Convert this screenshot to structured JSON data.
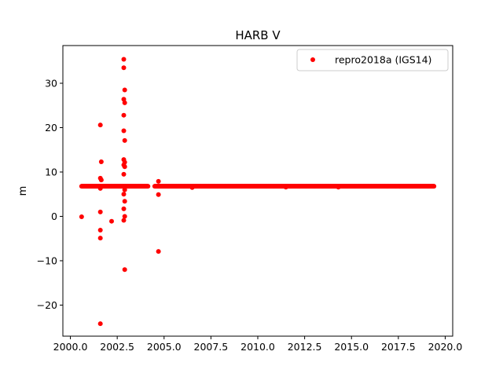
{
  "chart_data": {
    "type": "scatter",
    "title": "HARB V",
    "xlabel": "",
    "ylabel": "m",
    "xlim": [
      1999.6,
      2020.4
    ],
    "ylim": [
      -27,
      38.5
    ],
    "xticks": [
      2000.0,
      2002.5,
      2005.0,
      2007.5,
      2010.0,
      2012.5,
      2015.0,
      2017.5,
      2020.0
    ],
    "xtick_labels": [
      "2000.0",
      "2002.5",
      "2005.0",
      "2007.5",
      "2010.0",
      "2012.5",
      "2015.0",
      "2017.5",
      "2020.0"
    ],
    "yticks": [
      -20,
      -10,
      0,
      10,
      20,
      30
    ],
    "ytick_labels": [
      "−20",
      "−10",
      "0",
      "10",
      "20",
      "30"
    ],
    "grid": false,
    "legend_position": "top-right",
    "series": [
      {
        "name": "repro2018a (IGS14)",
        "color": "#ff0000",
        "marker": "circle",
        "baseline": {
          "y": 6.8,
          "segments": [
            [
              2000.6,
              2004.15
            ],
            [
              2004.5,
              2019.4
            ]
          ]
        },
        "points": [
          {
            "x": 2000.6,
            "y": -0.1
          },
          {
            "x": 2001.6,
            "y": 20.6
          },
          {
            "x": 2001.65,
            "y": 12.3
          },
          {
            "x": 2001.6,
            "y": 8.6
          },
          {
            "x": 2001.65,
            "y": 8.2
          },
          {
            "x": 2001.6,
            "y": 6.3
          },
          {
            "x": 2001.6,
            "y": 1.0
          },
          {
            "x": 2001.6,
            "y": -3.1
          },
          {
            "x": 2001.6,
            "y": -4.9
          },
          {
            "x": 2001.6,
            "y": -24.2
          },
          {
            "x": 2002.2,
            "y": -1.1
          },
          {
            "x": 2002.85,
            "y": 35.4
          },
          {
            "x": 2002.85,
            "y": 33.5
          },
          {
            "x": 2002.9,
            "y": 28.5
          },
          {
            "x": 2002.85,
            "y": 26.4
          },
          {
            "x": 2002.9,
            "y": 25.6
          },
          {
            "x": 2002.85,
            "y": 22.8
          },
          {
            "x": 2002.85,
            "y": 19.3
          },
          {
            "x": 2002.9,
            "y": 17.1
          },
          {
            "x": 2002.85,
            "y": 12.8
          },
          {
            "x": 2002.9,
            "y": 12.2
          },
          {
            "x": 2002.85,
            "y": 11.6
          },
          {
            "x": 2002.9,
            "y": 11.2
          },
          {
            "x": 2002.85,
            "y": 9.5
          },
          {
            "x": 2002.9,
            "y": 6.0
          },
          {
            "x": 2002.85,
            "y": 5.0
          },
          {
            "x": 2002.9,
            "y": 3.4
          },
          {
            "x": 2002.85,
            "y": 1.7
          },
          {
            "x": 2002.9,
            "y": 0.0
          },
          {
            "x": 2002.85,
            "y": -0.9
          },
          {
            "x": 2002.9,
            "y": -12.0
          },
          {
            "x": 2004.7,
            "y": 7.9
          },
          {
            "x": 2004.7,
            "y": 4.9
          },
          {
            "x": 2004.7,
            "y": -7.9
          },
          {
            "x": 2006.5,
            "y": 6.5
          },
          {
            "x": 2011.5,
            "y": 6.6
          },
          {
            "x": 2014.3,
            "y": 6.6
          }
        ]
      }
    ]
  }
}
